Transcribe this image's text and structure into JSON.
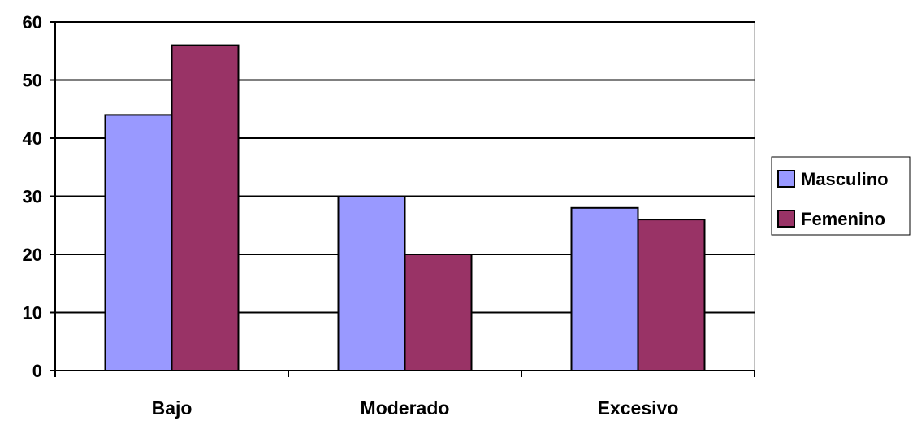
{
  "chart_data": {
    "type": "bar",
    "title": "",
    "xlabel": "",
    "ylabel": "",
    "categories": [
      "Bajo",
      "Moderado",
      "Excesivo"
    ],
    "series": [
      {
        "name": "Masculino",
        "values": [
          44,
          30,
          28
        ],
        "color": "#9999ff"
      },
      {
        "name": "Femenino",
        "values": [
          56,
          20,
          26
        ],
        "color": "#993366"
      }
    ],
    "ylim": [
      0,
      60
    ],
    "yticks": [
      0,
      10,
      20,
      30,
      40,
      50,
      60
    ],
    "ytick_labels": [
      "0",
      "10",
      "20",
      "30",
      "40",
      "50",
      "60"
    ],
    "grid": true,
    "legend_position": "right"
  }
}
